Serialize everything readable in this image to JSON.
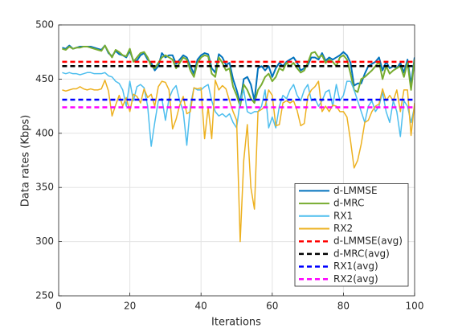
{
  "chart_data": {
    "type": "line",
    "xlabel": "Iterations",
    "ylabel": "Data rates (Kbps)",
    "xlim": [
      0,
      100
    ],
    "xticks": [
      0,
      20,
      40,
      60,
      80,
      100
    ],
    "ylim": [
      250,
      500
    ],
    "yticks": [
      250,
      300,
      350,
      400,
      450,
      500
    ],
    "grid": true,
    "legend": "lower right",
    "x": [
      1,
      2,
      3,
      4,
      5,
      6,
      7,
      8,
      9,
      10,
      11,
      12,
      13,
      14,
      15,
      16,
      17,
      18,
      19,
      20,
      21,
      22,
      23,
      24,
      25,
      26,
      27,
      28,
      29,
      30,
      31,
      32,
      33,
      34,
      35,
      36,
      37,
      38,
      39,
      40,
      41,
      42,
      43,
      44,
      45,
      46,
      47,
      48,
      49,
      50,
      51,
      52,
      53,
      54,
      55,
      56,
      57,
      58,
      59,
      60,
      61,
      62,
      63,
      64,
      65,
      66,
      67,
      68,
      69,
      70,
      71,
      72,
      73,
      74,
      75,
      76,
      77,
      78,
      79,
      80,
      81,
      82,
      83,
      84,
      85,
      86,
      87,
      88,
      89,
      90,
      91,
      92,
      93,
      94,
      95,
      96,
      97,
      98,
      99,
      100
    ],
    "series": [
      {
        "name": "d-LMMSE",
        "color": "#0072bd",
        "values": [
          479,
          478,
          481,
          478,
          479,
          480,
          480,
          480,
          480,
          479,
          478,
          477,
          481,
          474,
          471,
          476,
          473,
          472,
          470,
          476,
          467,
          467,
          472,
          474,
          468,
          465,
          458,
          462,
          474,
          470,
          472,
          472,
          464,
          468,
          472,
          470,
          462,
          455,
          468,
          472,
          474,
          473,
          460,
          456,
          473,
          470,
          463,
          465,
          450,
          440,
          428,
          450,
          452,
          445,
          430,
          460,
          462,
          458,
          462,
          452,
          460,
          465,
          462,
          466,
          468,
          470,
          465,
          458,
          460,
          463,
          470,
          470,
          468,
          474,
          467,
          470,
          468,
          470,
          472,
          475,
          472,
          465,
          444,
          446,
          446,
          455,
          462,
          464,
          466,
          470,
          458,
          466,
          460,
          462,
          460,
          465,
          456,
          468,
          445,
          470
        ]
      },
      {
        "name": "d-MRC",
        "color": "#77ac30",
        "values": [
          478,
          477,
          480,
          478,
          479,
          479,
          480,
          480,
          479,
          478,
          477,
          476,
          481,
          475,
          470,
          477,
          475,
          472,
          471,
          478,
          466,
          470,
          474,
          475,
          470,
          462,
          460,
          465,
          470,
          472,
          470,
          468,
          460,
          465,
          470,
          468,
          458,
          452,
          465,
          470,
          472,
          471,
          455,
          452,
          470,
          465,
          458,
          460,
          443,
          435,
          425,
          445,
          440,
          432,
          428,
          440,
          445,
          452,
          455,
          448,
          452,
          460,
          458,
          465,
          462,
          465,
          460,
          456,
          458,
          465,
          474,
          475,
          470,
          472,
          465,
          468,
          466,
          462,
          470,
          472,
          468,
          455,
          440,
          438,
          450,
          452,
          455,
          458,
          462,
          466,
          450,
          462,
          455,
          458,
          460,
          462,
          452,
          465,
          440,
          468
        ]
      },
      {
        "name": "RX1",
        "color": "#4dbeee",
        "values": [
          456,
          455,
          456,
          455,
          455,
          454,
          455,
          456,
          456,
          455,
          455,
          455,
          456,
          453,
          452,
          448,
          446,
          440,
          425,
          448,
          430,
          443,
          445,
          442,
          425,
          388,
          410,
          430,
          432,
          412,
          432,
          440,
          444,
          430,
          420,
          389,
          425,
          442,
          440,
          440,
          443,
          445,
          430,
          420,
          416,
          418,
          415,
          418,
          410,
          405,
          430,
          440,
          420,
          418,
          420,
          420,
          425,
          440,
          405,
          415,
          405,
          425,
          435,
          432,
          440,
          445,
          435,
          430,
          440,
          445,
          430,
          432,
          425,
          430,
          438,
          440,
          425,
          445,
          430,
          435,
          448,
          448,
          440,
          430,
          420,
          410,
          425,
          430,
          420,
          425,
          438,
          420,
          410,
          430,
          420,
          397,
          430,
          425,
          410,
          425
        ]
      },
      {
        "name": "RX2",
        "color": "#edb120",
        "values": [
          440,
          439,
          440,
          441,
          441,
          443,
          441,
          440,
          441,
          440,
          440,
          441,
          449,
          439,
          416,
          426,
          435,
          425,
          433,
          420,
          436,
          434,
          428,
          441,
          433,
          436,
          425,
          443,
          448,
          447,
          440,
          404,
          413,
          426,
          434,
          418,
          420,
          442,
          441,
          442,
          395,
          424,
          395,
          449,
          440,
          444,
          441,
          430,
          420,
          412,
          300,
          375,
          408,
          350,
          330,
          420,
          422,
          425,
          440,
          435,
          407,
          408,
          428,
          430,
          428,
          430,
          421,
          407,
          409,
          434,
          440,
          443,
          448,
          420,
          425,
          420,
          426,
          425,
          420,
          420,
          415,
          393,
          368,
          375,
          390,
          410,
          412,
          420,
          425,
          427,
          441,
          430,
          435,
          430,
          440,
          420,
          440,
          440,
          398,
          428
        ]
      },
      {
        "name": "d-LMMSE(avg)",
        "color": "#ff0000",
        "dashed": true,
        "x": [
          1,
          100
        ],
        "values": [
          466,
          466
        ]
      },
      {
        "name": "d-MRC(avg)",
        "color": "#000000",
        "dashed": true,
        "x": [
          1,
          100
        ],
        "values": [
          462,
          462
        ]
      },
      {
        "name": "RX1(avg)",
        "color": "#0000ff",
        "dashed": true,
        "x": [
          1,
          100
        ],
        "values": [
          431,
          431
        ]
      },
      {
        "name": "RX2(avg)",
        "color": "#ff00ff",
        "dashed": true,
        "x": [
          1,
          100
        ],
        "values": [
          424,
          424
        ]
      }
    ]
  }
}
